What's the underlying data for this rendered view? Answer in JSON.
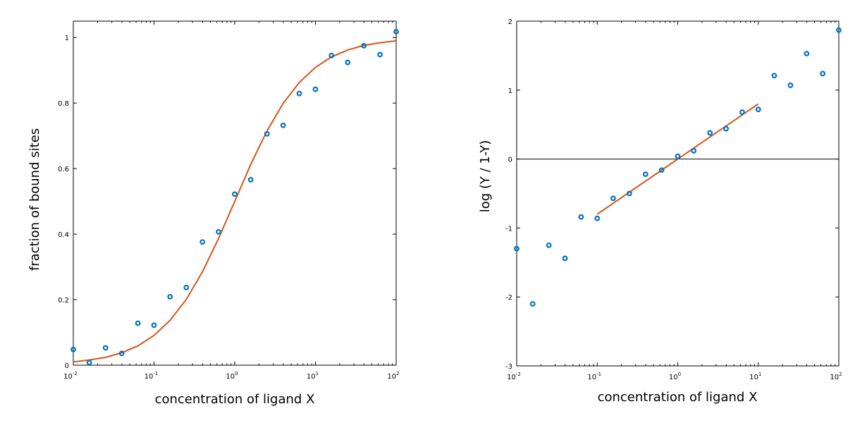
{
  "colors": {
    "points": "#0072BD",
    "fit": "#D95319"
  },
  "chart_data": [
    {
      "type": "scatter",
      "xlabel": "concentration of ligand X",
      "ylabel": "fraction of bound sites",
      "xscale": "log",
      "xlim": [
        0.01,
        100
      ],
      "ylim": [
        0,
        1.05
      ],
      "xticks": [
        {
          "base": "10",
          "exp": "-2",
          "value": 0.01
        },
        {
          "base": "10",
          "exp": "-1",
          "value": 0.1
        },
        {
          "base": "10",
          "exp": "0",
          "value": 1
        },
        {
          "base": "10",
          "exp": "1",
          "value": 10
        },
        {
          "base": "10",
          "exp": "2",
          "value": 100
        }
      ],
      "yticks": [
        {
          "label": "0",
          "value": 0
        },
        {
          "label": "0.2",
          "value": 0.2
        },
        {
          "label": "0.4",
          "value": 0.4
        },
        {
          "label": "0.6",
          "value": 0.6
        },
        {
          "label": "0.8",
          "value": 0.8
        },
        {
          "label": "1",
          "value": 1
        }
      ],
      "grid": false,
      "series": [
        {
          "kind": "points",
          "x": [
            0.01,
            0.0158,
            0.0251,
            0.0398,
            0.0631,
            0.1,
            0.158,
            0.251,
            0.398,
            0.631,
            1,
            1.58,
            2.51,
            3.98,
            6.31,
            10,
            15.8,
            25.1,
            39.8,
            63.1,
            100
          ],
          "y": [
            0.048,
            0.008,
            0.053,
            0.036,
            0.128,
            0.122,
            0.209,
            0.237,
            0.376,
            0.407,
            0.522,
            0.566,
            0.706,
            0.732,
            0.829,
            0.842,
            0.945,
            0.924,
            0.975,
            0.948,
            1.018
          ]
        },
        {
          "kind": "line",
          "x": [
            0.01,
            0.0158,
            0.0251,
            0.0398,
            0.0631,
            0.1,
            0.158,
            0.251,
            0.398,
            0.631,
            1,
            1.58,
            2.51,
            3.98,
            6.31,
            10,
            15.8,
            25.1,
            39.8,
            63.1,
            100
          ],
          "y": [
            0.01,
            0.016,
            0.024,
            0.038,
            0.059,
            0.091,
            0.137,
            0.201,
            0.285,
            0.387,
            0.5,
            0.613,
            0.715,
            0.799,
            0.863,
            0.909,
            0.941,
            0.962,
            0.976,
            0.984,
            0.99
          ]
        }
      ]
    },
    {
      "type": "scatter",
      "xlabel": "concentration of ligand X",
      "ylabel": "log (Y / 1-Y)",
      "xscale": "log",
      "xlim": [
        0.01,
        100
      ],
      "ylim": [
        -3,
        2
      ],
      "xticks": [
        {
          "base": "10",
          "exp": "-2",
          "value": 0.01
        },
        {
          "base": "10",
          "exp": "-1",
          "value": 0.1
        },
        {
          "base": "10",
          "exp": "0",
          "value": 1
        },
        {
          "base": "10",
          "exp": "1",
          "value": 10
        },
        {
          "base": "10",
          "exp": "2",
          "value": 100
        }
      ],
      "yticks": [
        {
          "label": "-3",
          "value": -3
        },
        {
          "label": "-2",
          "value": -2
        },
        {
          "label": "-1",
          "value": -1
        },
        {
          "label": "0",
          "value": 0
        },
        {
          "label": "1",
          "value": 1
        },
        {
          "label": "2",
          "value": 2
        }
      ],
      "grid": false,
      "hline": 0,
      "series": [
        {
          "kind": "points",
          "x": [
            0.01,
            0.0158,
            0.0251,
            0.0398,
            0.0631,
            0.1,
            0.158,
            0.251,
            0.398,
            0.631,
            1,
            1.58,
            2.51,
            3.98,
            6.31,
            10,
            15.8,
            25.1,
            39.8,
            63.1,
            100
          ],
          "y": [
            -1.3,
            -2.1,
            -1.25,
            -1.44,
            -0.84,
            -0.86,
            -0.57,
            -0.5,
            -0.22,
            -0.16,
            0.04,
            0.12,
            0.38,
            0.44,
            0.68,
            0.72,
            1.21,
            1.07,
            1.53,
            1.24,
            1.87
          ]
        },
        {
          "kind": "line",
          "x": [
            0.1,
            10
          ],
          "y": [
            -0.8,
            0.8
          ]
        }
      ]
    }
  ]
}
